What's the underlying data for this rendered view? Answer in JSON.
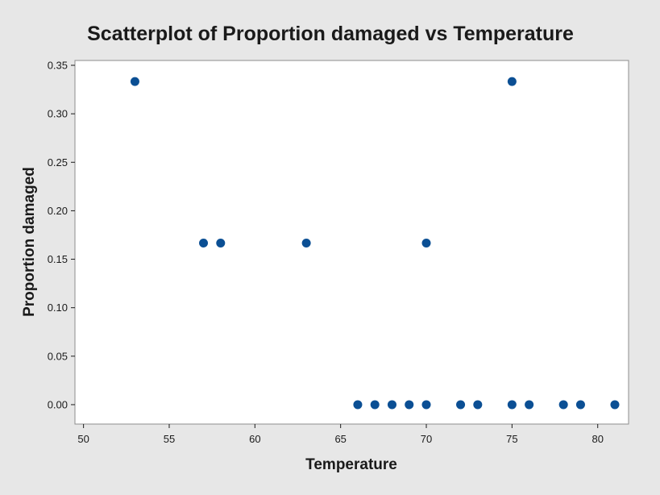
{
  "chart_data": {
    "type": "scatter",
    "title": "Scatterplot of Proportion damaged vs Temperature",
    "xlabel": "Temperature",
    "ylabel": "Proportion damaged",
    "xlim": [
      49.5,
      81.8
    ],
    "ylim": [
      -0.02,
      0.355
    ],
    "xticks": [
      50,
      55,
      60,
      65,
      70,
      75,
      80
    ],
    "yticks": [
      0.0,
      0.05,
      0.1,
      0.15,
      0.2,
      0.25,
      0.3,
      0.35
    ],
    "xtick_labels": [
      "50",
      "55",
      "60",
      "65",
      "70",
      "75",
      "80"
    ],
    "ytick_labels": [
      "0.00",
      "0.05",
      "0.10",
      "0.15",
      "0.20",
      "0.25",
      "0.30",
      "0.35"
    ],
    "grid": false,
    "legend": "none",
    "points": [
      {
        "x": 53,
        "y": 0.3333
      },
      {
        "x": 57,
        "y": 0.1667
      },
      {
        "x": 58,
        "y": 0.1667
      },
      {
        "x": 63,
        "y": 0.1667
      },
      {
        "x": 66,
        "y": 0.0
      },
      {
        "x": 67,
        "y": 0.0
      },
      {
        "x": 68,
        "y": 0.0
      },
      {
        "x": 69,
        "y": 0.0
      },
      {
        "x": 70,
        "y": 0.0
      },
      {
        "x": 70,
        "y": 0.1667
      },
      {
        "x": 72,
        "y": 0.0
      },
      {
        "x": 73,
        "y": 0.0
      },
      {
        "x": 75,
        "y": 0.0
      },
      {
        "x": 75,
        "y": 0.3333
      },
      {
        "x": 76,
        "y": 0.0
      },
      {
        "x": 78,
        "y": 0.0
      },
      {
        "x": 79,
        "y": 0.0
      },
      {
        "x": 81,
        "y": 0.0
      }
    ],
    "colors": {
      "marker": "#0b4f94",
      "background": "#e7e7e7",
      "plot_area": "#ffffff",
      "frame": "#8c8c8c"
    }
  }
}
